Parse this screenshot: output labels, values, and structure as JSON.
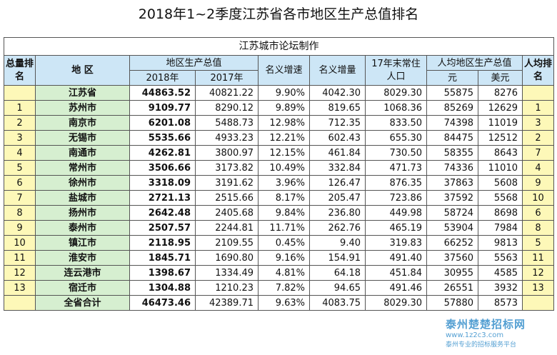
{
  "title": "2018年1~2季度江苏省各市地区生产总值排名",
  "subtitle": "江苏城市论坛制作",
  "headers": {
    "rank_total": "总量排名",
    "region": "地 区",
    "gdp": "地区生产总值",
    "y2018": "2018年",
    "y2017": "2017年",
    "nominal_growth_rate": "名义增速",
    "nominal_increase": "名义增量",
    "population": "17年末常住人口",
    "per_capita": "人均地区生产总值",
    "yuan": "元",
    "usd": "美元",
    "per_capita_rank": "人均排名"
  },
  "rows": [
    {
      "rank": "",
      "name": "江苏省",
      "g2018": "44863.52",
      "g2017": "40821.22",
      "rate": "9.90%",
      "inc": "4042.30",
      "pop": "8029.30",
      "yuan": "55875",
      "usd": "8276",
      "prank": ""
    },
    {
      "rank": "1",
      "name": "苏州市",
      "g2018": "9109.77",
      "g2017": "8290.12",
      "rate": "9.89%",
      "inc": "819.65",
      "pop": "1068.36",
      "yuan": "85269",
      "usd": "12629",
      "prank": "1"
    },
    {
      "rank": "2",
      "name": "南京市",
      "g2018": "6201.08",
      "g2017": "5488.73",
      "rate": "12.98%",
      "inc": "712.35",
      "pop": "833.50",
      "yuan": "74398",
      "usd": "11019",
      "prank": "3"
    },
    {
      "rank": "3",
      "name": "无锡市",
      "g2018": "5535.66",
      "g2017": "4933.23",
      "rate": "12.21%",
      "inc": "602.43",
      "pop": "655.30",
      "yuan": "84475",
      "usd": "12512",
      "prank": "2"
    },
    {
      "rank": "4",
      "name": "南通市",
      "g2018": "4262.81",
      "g2017": "3800.97",
      "rate": "12.15%",
      "inc": "461.84",
      "pop": "730.50",
      "yuan": "58355",
      "usd": "8643",
      "prank": "7"
    },
    {
      "rank": "5",
      "name": "常州市",
      "g2018": "3506.66",
      "g2017": "3173.82",
      "rate": "10.49%",
      "inc": "332.84",
      "pop": "471.73",
      "yuan": "74336",
      "usd": "11010",
      "prank": "4"
    },
    {
      "rank": "6",
      "name": "徐州市",
      "g2018": "3318.09",
      "g2017": "3191.62",
      "rate": "3.96%",
      "inc": "126.47",
      "pop": "876.35",
      "yuan": "37863",
      "usd": "5608",
      "prank": "9"
    },
    {
      "rank": "7",
      "name": "盐城市",
      "g2018": "2721.13",
      "g2017": "2515.66",
      "rate": "8.17%",
      "inc": "205.47",
      "pop": "723.86",
      "yuan": "37592",
      "usd": "5568",
      "prank": "10"
    },
    {
      "rank": "8",
      "name": "扬州市",
      "g2018": "2642.48",
      "g2017": "2405.68",
      "rate": "9.84%",
      "inc": "236.80",
      "pop": "449.98",
      "yuan": "58724",
      "usd": "8698",
      "prank": "6"
    },
    {
      "rank": "9",
      "name": "泰州市",
      "g2018": "2507.57",
      "g2017": "2244.81",
      "rate": "11.71%",
      "inc": "262.76",
      "pop": "465.19",
      "yuan": "53904",
      "usd": "7984",
      "prank": "8"
    },
    {
      "rank": "10",
      "name": "镇江市",
      "g2018": "2118.95",
      "g2017": "2109.55",
      "rate": "0.45%",
      "inc": "9.40",
      "pop": "319.83",
      "yuan": "66252",
      "usd": "9813",
      "prank": "5"
    },
    {
      "rank": "11",
      "name": "淮安市",
      "g2018": "1845.71",
      "g2017": "1690.80",
      "rate": "9.16%",
      "inc": "154.91",
      "pop": "491.40",
      "yuan": "37560",
      "usd": "5563",
      "prank": "11"
    },
    {
      "rank": "12",
      "name": "连云港市",
      "g2018": "1398.67",
      "g2017": "1334.49",
      "rate": "4.81%",
      "inc": "64.18",
      "pop": "451.84",
      "yuan": "30955",
      "usd": "4585",
      "prank": "12"
    },
    {
      "rank": "13",
      "name": "宿迁市",
      "g2018": "1304.88",
      "g2017": "1210.23",
      "rate": "7.82%",
      "inc": "94.65",
      "pop": "491.46",
      "yuan": "26551",
      "usd": "3932",
      "prank": "13"
    },
    {
      "rank": "",
      "name": "全省合计",
      "g2018": "46473.46",
      "g2017": "42389.71",
      "rate": "9.63%",
      "inc": "4083.75",
      "pop": "8029.30",
      "yuan": "57880",
      "usd": "8573",
      "prank": ""
    }
  ],
  "watermark": {
    "name": "泰州楚楚招标网",
    "url": "www.1z2c3.com",
    "tagline": "泰州专业的招标服务平台"
  }
}
